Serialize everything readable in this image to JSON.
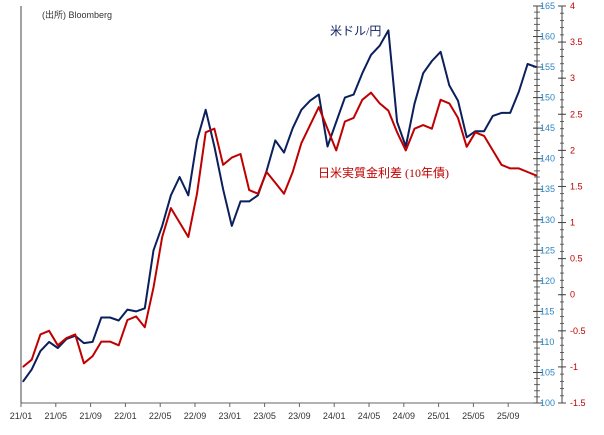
{
  "source": "(出所) Bloomberg",
  "chart_data": {
    "type": "line",
    "x": [
      "21/01",
      "21/02",
      "21/03",
      "21/04",
      "21/05",
      "21/06",
      "21/07",
      "21/08",
      "21/09",
      "21/10",
      "21/11",
      "21/12",
      "22/01",
      "22/02",
      "22/03",
      "22/04",
      "22/05",
      "22/06",
      "22/07",
      "22/08",
      "22/09",
      "22/10",
      "22/11",
      "22/12",
      "23/01",
      "23/02",
      "23/03",
      "23/04",
      "23/05",
      "23/06",
      "23/07",
      "23/08",
      "23/09",
      "23/10",
      "23/11",
      "23/12",
      "24/01",
      "24/02",
      "24/03",
      "24/04",
      "24/05",
      "24/06",
      "24/07",
      "24/08",
      "24/09",
      "24/10",
      "24/11",
      "24/12",
      "25/01",
      "25/02",
      "25/03",
      "25/04",
      "25/05",
      "25/06",
      "25/07",
      "25/08",
      "25/09",
      "25/10",
      "25/11",
      "25/12"
    ],
    "x_ticks": [
      "21/01",
      "21/05",
      "21/09",
      "22/01",
      "22/05",
      "22/09",
      "23/01",
      "23/05",
      "23/09",
      "24/01",
      "24/05",
      "24/09",
      "25/01",
      "25/05",
      "25/09"
    ],
    "series": [
      {
        "name": "米ドル/円",
        "axis": "left",
        "color": "#0b1f5c",
        "values": [
          103.5,
          105.5,
          108.5,
          110,
          109,
          110.5,
          111,
          109.8,
          110,
          114,
          114,
          113.5,
          115.3,
          115,
          115.5,
          125,
          129,
          134,
          137,
          134,
          143,
          148,
          142,
          135,
          129,
          133,
          133,
          134,
          138,
          143,
          141,
          145,
          148,
          149.5,
          150.5,
          142,
          146,
          150,
          150.5,
          154,
          157,
          158.5,
          161,
          146,
          142,
          149,
          154,
          156,
          157.5,
          152,
          149.5,
          143.5,
          144.5,
          144.5,
          147,
          147.5,
          147.5,
          151,
          155.5,
          155
        ]
      },
      {
        "name": "日米実質金利差 (10年債)",
        "axis": "right",
        "color": "#c00000",
        "values": [
          -1.0,
          -0.9,
          -0.55,
          -0.5,
          -0.7,
          -0.6,
          -0.55,
          -0.95,
          -0.85,
          -0.65,
          -0.65,
          -0.7,
          -0.35,
          -0.3,
          -0.45,
          0.1,
          0.8,
          1.2,
          1.0,
          0.8,
          1.4,
          2.25,
          2.3,
          1.8,
          1.9,
          1.95,
          1.45,
          1.4,
          1.7,
          1.55,
          1.4,
          1.7,
          2.1,
          2.35,
          2.6,
          2.3,
          2.0,
          2.4,
          2.45,
          2.7,
          2.8,
          2.65,
          2.55,
          2.25,
          2.0,
          2.3,
          2.35,
          2.3,
          2.7,
          2.65,
          2.45,
          2.05,
          2.25,
          2.2,
          2.0,
          1.8,
          1.75,
          1.75,
          1.7,
          1.65
        ]
      }
    ],
    "left_axis": {
      "range": [
        100,
        165
      ],
      "ticks": [
        "100",
        "105",
        "110",
        "115",
        "120",
        "125",
        "130",
        "135",
        "140",
        "145",
        "150",
        "155",
        "160",
        "165"
      ],
      "color": "#2e86c1"
    },
    "right_axis": {
      "range": [
        -1.5,
        4
      ],
      "ticks": [
        "-1.5",
        "-1",
        "-0.5",
        "0",
        "0.5",
        "1",
        "1.5",
        "2",
        "2.5",
        "3",
        "3.5",
        "4"
      ],
      "color": "#c00000"
    },
    "grid": false
  }
}
